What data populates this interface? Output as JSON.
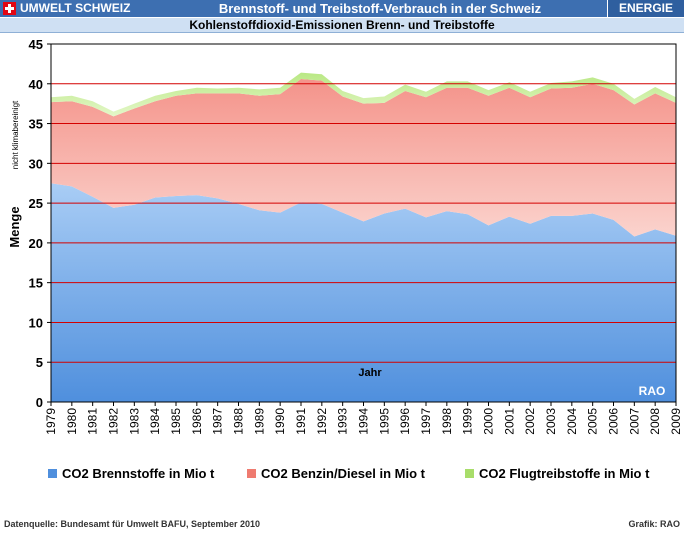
{
  "header": {
    "brand": "UMWELT SCHWEIZ",
    "title": "Brennstoff- und Treibstoff-Verbrauch in der Schweiz",
    "section": "ENERGIE",
    "subtitle": "Kohlenstoffdioxid-Emissionen Brenn- und Treibstoffe"
  },
  "footer": {
    "source": "Datenquelle: Bundesamt für Umwelt BAFU, September 2010",
    "credit": "Grafik: RAO"
  },
  "chart_data": {
    "type": "area",
    "stacked": true,
    "title": "Kohlenstoffdioxid-Emissionen Brenn- und Treibstoffe",
    "xlabel": "Jahr",
    "ylabel": "Menge",
    "ylabel_note": "nicht klimabereinigt",
    "watermark": "RAO",
    "ylim": [
      0,
      45
    ],
    "yticks": [
      0,
      5,
      10,
      15,
      20,
      25,
      30,
      35,
      40,
      45
    ],
    "grid": true,
    "legend_position": "bottom",
    "x": [
      1979,
      1980,
      1981,
      1982,
      1983,
      1984,
      1985,
      1986,
      1987,
      1988,
      1989,
      1990,
      1991,
      1992,
      1993,
      1994,
      1995,
      1996,
      1997,
      1998,
      1999,
      2000,
      2001,
      2002,
      2003,
      2004,
      2005,
      2006,
      2007,
      2008,
      2009
    ],
    "series": [
      {
        "name": "CO2 Brennstoffe in Mio t",
        "color": "#6fa6e8",
        "values": [
          27.5,
          27.1,
          25.8,
          24.4,
          24.8,
          25.7,
          25.9,
          26.0,
          25.6,
          24.9,
          24.1,
          23.8,
          25.1,
          24.9,
          23.8,
          22.7,
          23.7,
          24.3,
          23.2,
          24.0,
          23.6,
          22.2,
          23.3,
          22.4,
          23.4,
          23.4,
          23.7,
          22.9,
          20.8,
          21.7,
          20.9
        ]
      },
      {
        "name": "CO2 Benzin/Diesel in Mio t",
        "color": "#f08a80",
        "values": [
          10.2,
          10.7,
          11.3,
          11.5,
          12.1,
          12.1,
          12.6,
          12.8,
          13.2,
          13.9,
          14.4,
          14.9,
          15.5,
          15.5,
          14.6,
          14.8,
          13.9,
          14.8,
          15.1,
          15.5,
          15.9,
          16.3,
          16.2,
          15.9,
          16.0,
          16.1,
          16.3,
          16.3,
          16.6,
          17.1,
          16.7
        ]
      },
      {
        "name": "CO2 Flugtreibstoffe in Mio t",
        "color": "#c8ec9a",
        "values": [
          0.6,
          0.7,
          0.7,
          0.6,
          0.6,
          0.7,
          0.6,
          0.7,
          0.6,
          0.7,
          0.8,
          0.8,
          0.8,
          0.8,
          0.7,
          0.7,
          0.8,
          0.8,
          0.7,
          0.8,
          0.8,
          0.7,
          0.7,
          0.7,
          0.7,
          0.8,
          0.8,
          0.8,
          0.7,
          0.8,
          0.7
        ]
      }
    ]
  }
}
